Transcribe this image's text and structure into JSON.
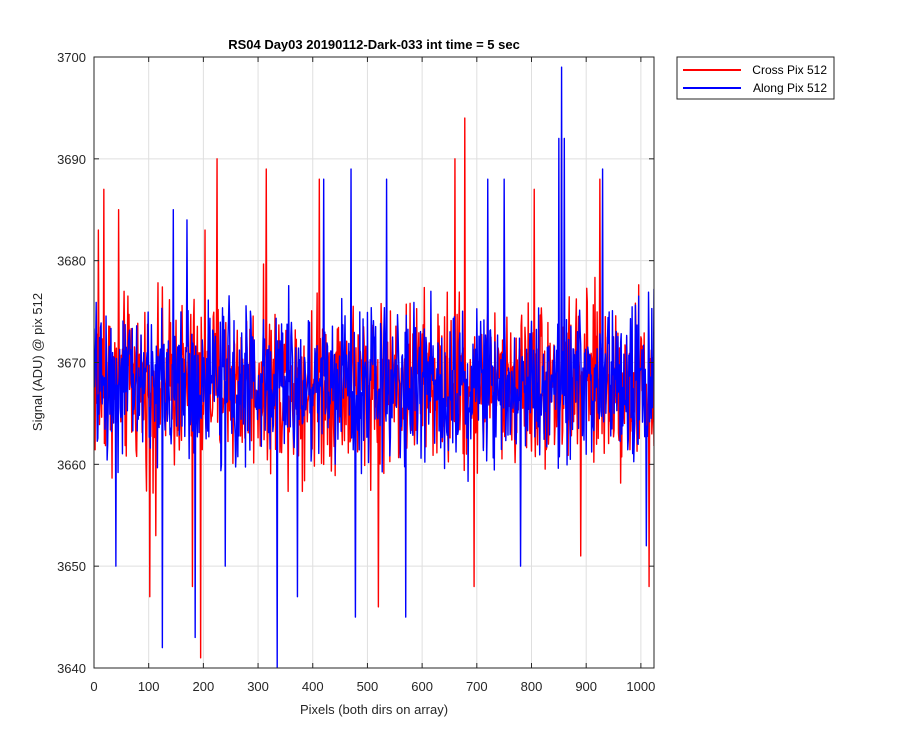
{
  "chart_data": {
    "type": "line",
    "title": "RS04 Day03 20190112-Dark-033 int time = 5 sec",
    "xlabel": "Pixels (both dirs on array)",
    "ylabel": "Signal (ADU) @ pix 512",
    "xlim": [
      0,
      1024
    ],
    "ylim": [
      3640,
      3700
    ],
    "xticks": [
      0,
      100,
      200,
      300,
      400,
      500,
      600,
      700,
      800,
      900,
      1000
    ],
    "yticks": [
      3640,
      3650,
      3660,
      3670,
      3680,
      3690,
      3700
    ],
    "grid": true,
    "legend_position": "outside-top-right",
    "series": [
      {
        "name": "Cross Pix 512",
        "color": "#ff0000",
        "noise_center": 3668,
        "noise_halfrange": 12,
        "peaks": [
          {
            "x": 8,
            "y": 3683
          },
          {
            "x": 18,
            "y": 3687
          },
          {
            "x": 45,
            "y": 3685
          },
          {
            "x": 102,
            "y": 3647
          },
          {
            "x": 113,
            "y": 3653
          },
          {
            "x": 180,
            "y": 3648
          },
          {
            "x": 195,
            "y": 3641
          },
          {
            "x": 203,
            "y": 3683
          },
          {
            "x": 225,
            "y": 3690
          },
          {
            "x": 315,
            "y": 3689
          },
          {
            "x": 412,
            "y": 3688
          },
          {
            "x": 520,
            "y": 3646
          },
          {
            "x": 660,
            "y": 3690
          },
          {
            "x": 678,
            "y": 3694
          },
          {
            "x": 695,
            "y": 3648
          },
          {
            "x": 805,
            "y": 3687
          },
          {
            "x": 855,
            "y": 3692
          },
          {
            "x": 890,
            "y": 3651
          },
          {
            "x": 925,
            "y": 3688
          },
          {
            "x": 1015,
            "y": 3648
          }
        ]
      },
      {
        "name": "Along Pix 512",
        "color": "#0000ff",
        "noise_center": 3668,
        "noise_halfrange": 11,
        "peaks": [
          {
            "x": 40,
            "y": 3650
          },
          {
            "x": 125,
            "y": 3642
          },
          {
            "x": 145,
            "y": 3685
          },
          {
            "x": 170,
            "y": 3684
          },
          {
            "x": 185,
            "y": 3643
          },
          {
            "x": 240,
            "y": 3650
          },
          {
            "x": 335,
            "y": 3640
          },
          {
            "x": 372,
            "y": 3647
          },
          {
            "x": 420,
            "y": 3688
          },
          {
            "x": 470,
            "y": 3689
          },
          {
            "x": 478,
            "y": 3645
          },
          {
            "x": 535,
            "y": 3688
          },
          {
            "x": 570,
            "y": 3645
          },
          {
            "x": 720,
            "y": 3688
          },
          {
            "x": 750,
            "y": 3688
          },
          {
            "x": 780,
            "y": 3650
          },
          {
            "x": 850,
            "y": 3692
          },
          {
            "x": 855,
            "y": 3699
          },
          {
            "x": 860,
            "y": 3692
          },
          {
            "x": 930,
            "y": 3689
          },
          {
            "x": 1010,
            "y": 3652
          }
        ]
      }
    ]
  }
}
